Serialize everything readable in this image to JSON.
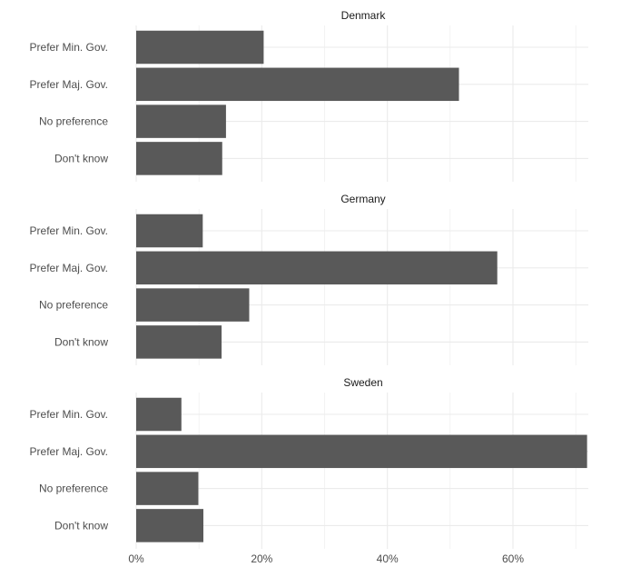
{
  "chart_data": {
    "type": "bar",
    "orientation": "horizontal",
    "categories": [
      "Prefer Min. Gov.",
      "Prefer Maj. Gov.",
      "No preference",
      "Don't know"
    ],
    "xlim": [
      0,
      72
    ],
    "x_ticks": [
      0,
      20,
      40,
      60
    ],
    "x_tick_labels": [
      "0%",
      "20%",
      "40%",
      "60%"
    ],
    "grid": true,
    "bar_color": "#595959",
    "grid_color": "#ebebeb",
    "facets": [
      {
        "title": "Denmark",
        "values": [
          20.3,
          51.4,
          14.3,
          13.7
        ]
      },
      {
        "title": "Germany",
        "values": [
          10.6,
          57.5,
          18.0,
          13.6
        ]
      },
      {
        "title": "Sweden",
        "values": [
          7.2,
          71.8,
          9.9,
          10.7
        ]
      }
    ]
  }
}
